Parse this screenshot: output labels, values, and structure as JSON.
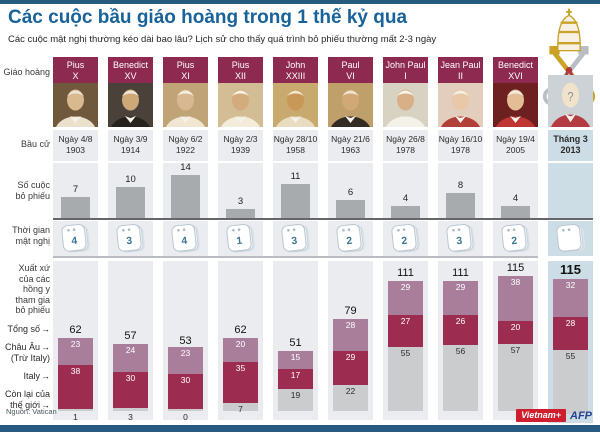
{
  "header": {
    "title": "Các cuộc bầu giáo hoàng trong 1 thế kỷ qua",
    "subtitle": "Các cuộc mật nghị thường kéo dài bao lâu? Lịch sử cho thấy quá trình bỏ phiếu thường mất 2-3 ngày",
    "source": "Nguồn: Vatican",
    "brand": {
      "vietnamplus": "Vietnam+",
      "afp": "AFP"
    }
  },
  "icons": {
    "arrow": "→",
    "question_mark": "?",
    "vatican_emblem": "vatican-crossed-keys-and-tiara"
  },
  "row_labels": {
    "pope": "Giáo hoàng",
    "election": "Bầu cử",
    "ballots": [
      "Số cuộc",
      "bỏ phiếu"
    ],
    "duration": [
      "Thời gian",
      "mật nghị"
    ],
    "origin": [
      "Xuất xứ",
      "của các",
      "hồng y",
      "tham gia",
      "bỏ phiếu"
    ],
    "total": "Tổng số",
    "europe": [
      "Châu Âu",
      "(Trừ Italy)"
    ],
    "italy": "Italy",
    "rest": [
      "Còn lại của",
      "thế giới"
    ]
  },
  "popes": [
    {
      "name": [
        "Pius",
        "X"
      ],
      "date": [
        "Ngày 4/8",
        "1903"
      ],
      "ballots": 7,
      "days": 4,
      "total": 62,
      "europe": 23,
      "italy": 38,
      "rest": 1,
      "highlight": false,
      "portrait": {
        "bg": "#70583c",
        "robe": "#eae0cc",
        "skin": "#d9b98e",
        "cap": "#ece4d4"
      }
    },
    {
      "name": [
        "Benedict",
        "XV"
      ],
      "date": [
        "Ngày 3/9",
        "1914"
      ],
      "ballots": 10,
      "days": 3,
      "total": 57,
      "europe": 24,
      "italy": 30,
      "rest": 3,
      "highlight": false,
      "portrait": {
        "bg": "#4a423a",
        "robe": "#26221e",
        "skin": "#cfa878",
        "cap": "#f0e8d8"
      }
    },
    {
      "name": [
        "Pius",
        "XI"
      ],
      "date": [
        "Ngày 6/2",
        "1922"
      ],
      "ballots": 14,
      "days": 4,
      "total": 53,
      "europe": 23,
      "italy": 30,
      "rest": 0,
      "highlight": false,
      "portrait": {
        "bg": "#c0a478",
        "robe": "#f0e6d2",
        "skin": "#d8b890",
        "cap": "#f5efe2"
      }
    },
    {
      "name": [
        "Pius",
        "XII"
      ],
      "date": [
        "Ngày 2/3",
        "1939"
      ],
      "ballots": 3,
      "days": 1,
      "total": 62,
      "europe": 20,
      "italy": 35,
      "rest": 7,
      "highlight": false,
      "portrait": {
        "bg": "#d3bd94",
        "robe": "#f3ecdb",
        "skin": "#d3ac7e",
        "cap": "#f7f2e6"
      }
    },
    {
      "name": [
        "John",
        "XXIII"
      ],
      "date": [
        "Ngày 28/10",
        "1958"
      ],
      "ballots": 11,
      "days": 3,
      "total": 51,
      "europe": 15,
      "italy": 17,
      "rest": 19,
      "highlight": false,
      "portrait": {
        "bg": "#c8a96e",
        "robe": "#e9dcc0",
        "skin": "#c89858",
        "cap": "#f0e6cc"
      }
    },
    {
      "name": [
        "Paul",
        "VI"
      ],
      "date": [
        "Ngày 21/6",
        "1963"
      ],
      "ballots": 6,
      "days": 2,
      "total": 79,
      "europe": 28,
      "italy": 29,
      "rest": 22,
      "highlight": false,
      "portrait": {
        "bg": "#bfa06a",
        "robe": "#332c22",
        "skin": "#d2a876",
        "cap": "#efe6d2"
      }
    },
    {
      "name": [
        "John Paul",
        "I"
      ],
      "date": [
        "Ngày 26/8",
        "1978"
      ],
      "ballots": 4,
      "days": 2,
      "total": 111,
      "europe": 29,
      "italy": 27,
      "rest": 55,
      "highlight": false,
      "portrait": {
        "bg": "#d8d2c2",
        "robe": "#f4f1e8",
        "skin": "#d8b088",
        "cap": "#f8f5ee"
      }
    },
    {
      "name": [
        "Jean Paul",
        "II"
      ],
      "date": [
        "Ngày 16/10",
        "1978"
      ],
      "ballots": 8,
      "days": 3,
      "total": 111,
      "europe": 29,
      "italy": 26,
      "rest": 56,
      "highlight": false,
      "portrait": {
        "bg": "#e3cdbc",
        "robe": "#b04038",
        "skin": "#e8c8a8",
        "cap": "#f6f0e4"
      }
    },
    {
      "name": [
        "Benedict",
        "XVI"
      ],
      "date": [
        "Ngày 19/4",
        "2005"
      ],
      "ballots": 4,
      "days": 2,
      "total": 115,
      "europe": 38,
      "italy": 20,
      "rest": 57,
      "highlight": false,
      "portrait": {
        "bg": "#6e2020",
        "robe": "#c13434",
        "skin": "#e3bd96",
        "cap": "#f4ecdc"
      }
    },
    {
      "name": [
        "",
        ""
      ],
      "date": [
        "Tháng 3",
        "2013"
      ],
      "ballots": null,
      "days": null,
      "total": 115,
      "europe": 32,
      "italy": 28,
      "rest": 55,
      "highlight": true,
      "portrait": {
        "bg": "#ccd2d6",
        "robe": "#b23c42",
        "skin": "#f1e3cb",
        "cap": "#f1e3cb",
        "question": true
      }
    }
  ],
  "chart_data": [
    {
      "type": "bar",
      "title": "Số cuộc bỏ phiếu",
      "categories": [
        "Pius X",
        "Benedict XV",
        "Pius XI",
        "Pius XII",
        "John XXIII",
        "Paul VI",
        "John Paul I",
        "Jean Paul II",
        "Benedict XVI",
        "Tháng 3 2013"
      ],
      "values": [
        7,
        10,
        14,
        3,
        11,
        6,
        4,
        8,
        4,
        null
      ],
      "xlabel": "Giáo hoàng",
      "ylabel": "Số cuộc bỏ phiếu",
      "ylim": [
        0,
        14
      ],
      "grid": false,
      "legend_position": "none"
    },
    {
      "type": "bar",
      "stacked": true,
      "title": "Xuất xứ của các hồng y tham gia bỏ phiếu",
      "categories": [
        "Pius X",
        "Benedict XV",
        "Pius XI",
        "Pius XII",
        "John XXIII",
        "Paul VI",
        "John Paul I",
        "Jean Paul II",
        "Benedict XVI",
        "Tháng 3 2013"
      ],
      "series": [
        {
          "name": "Châu Âu (Trừ Italy)",
          "values": [
            23,
            24,
            23,
            20,
            15,
            28,
            29,
            29,
            38,
            32
          ]
        },
        {
          "name": "Italy",
          "values": [
            38,
            30,
            30,
            35,
            17,
            29,
            27,
            26,
            20,
            28
          ]
        },
        {
          "name": "Còn lại của thế giới",
          "values": [
            1,
            3,
            0,
            7,
            19,
            22,
            55,
            56,
            57,
            55
          ]
        }
      ],
      "totals": [
        62,
        57,
        53,
        62,
        51,
        79,
        111,
        111,
        115,
        115
      ],
      "ylabel": "Tổng số",
      "ylim": [
        0,
        115
      ],
      "grid": false,
      "legend_position": "left"
    },
    {
      "type": "table",
      "title": "Thời gian mật nghị (ngày)",
      "categories": [
        "Pius X",
        "Benedict XV",
        "Pius XI",
        "Pius XII",
        "John XXIII",
        "Paul VI",
        "John Paul I",
        "Jean Paul II",
        "Benedict XVI",
        "Tháng 3 2013"
      ],
      "values": [
        4,
        3,
        4,
        1,
        3,
        2,
        2,
        3,
        2,
        null
      ]
    }
  ],
  "colors": {
    "accent-bar": "#265a80",
    "title-text": "#186399",
    "maroon": "#8e2a4f",
    "mauve-segment": "#a87e9b",
    "maroon-segment": "#9d2c51",
    "gray-segment": "#cbccce",
    "ballot-bar": "#a8abae",
    "cell-bg": "#eaecef",
    "highlight-bg": "#cddde5",
    "calendar-number": "#3a7590",
    "vietnamplus-red": "#cf1f2f",
    "afp-blue": "#25418f"
  }
}
